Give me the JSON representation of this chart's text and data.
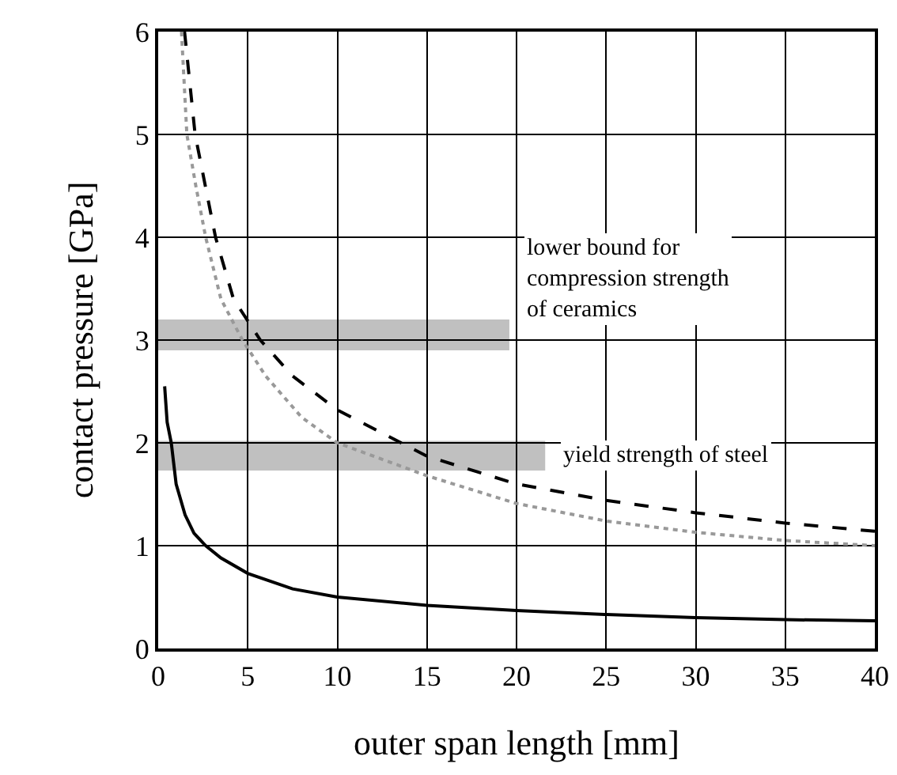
{
  "chart_data": {
    "type": "line",
    "xlabel": "outer span length [mm]",
    "ylabel": "contact pressure [GPa]",
    "xlim": [
      0,
      40
    ],
    "xticks": [
      0,
      5,
      10,
      15,
      20,
      25,
      30,
      35,
      40
    ],
    "ylim": [
      0,
      6
    ],
    "yticks": [
      0,
      1,
      2,
      3,
      4,
      5,
      6
    ],
    "grid": true,
    "series": [
      {
        "color": "#000000",
        "line_style": "solid",
        "x": [
          0.36,
          0.5,
          0.73,
          1,
          1.5,
          2,
          2.65,
          3.5,
          5,
          7.5,
          10,
          15,
          20,
          25,
          30,
          35,
          40
        ],
        "values": [
          2.55,
          2.2,
          2,
          1.6,
          1.3,
          1.12,
          1,
          0.88,
          0.73,
          0.58,
          0.5,
          0.42,
          0.37,
          0.33,
          0.3,
          0.28,
          0.27
        ]
      },
      {
        "color": "#000000",
        "line_style": "dashed",
        "x": [
          1.47,
          2.06,
          3.2,
          4.2,
          5.7,
          7.5,
          10,
          15,
          20,
          25,
          30,
          35,
          40
        ],
        "values": [
          6,
          5,
          4,
          3.4,
          3,
          2.65,
          2.32,
          1.87,
          1.6,
          1.44,
          1.32,
          1.22,
          1.14
        ]
      },
      {
        "color": "#999999",
        "line_style": "dotted",
        "x": [
          1.3,
          1.6,
          2.1,
          2.65,
          3.5,
          4.7,
          6,
          8,
          10,
          15,
          20,
          25,
          30,
          35,
          40
        ],
        "values": [
          6,
          5,
          4.5,
          4,
          3.4,
          3,
          2.65,
          2.25,
          2,
          1.68,
          1.41,
          1.24,
          1.13,
          1.05,
          1
        ]
      }
    ],
    "bands": [
      {
        "axis": "y",
        "from": 2.9,
        "to": 3.2,
        "color": "#c0c0c0",
        "label": "lower bound for\ncompression strength\nof ceramics"
      },
      {
        "axis": "y",
        "from": 1.73,
        "to": 2.02,
        "color": "#c0c0c0",
        "label": "yield strength of steel"
      }
    ]
  }
}
